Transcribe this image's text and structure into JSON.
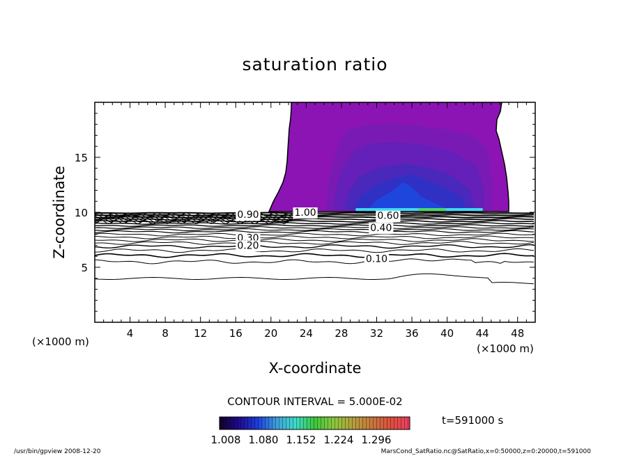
{
  "chart_data": {
    "type": "contour",
    "title": "saturation ratio",
    "xlabel": "X-coordinate",
    "ylabel": "Z-coordinate",
    "x_unit_left": "(×1000 m)",
    "x_unit_right": "(×1000 m)",
    "xlim": [
      0,
      50
    ],
    "ylim": [
      0,
      20
    ],
    "x_ticks": [
      4,
      8,
      12,
      16,
      20,
      24,
      28,
      32,
      36,
      40,
      44,
      48
    ],
    "y_ticks": [
      5,
      10,
      15
    ],
    "contour_interval": "CONTOUR INTERVAL = 5.000E-02",
    "contour_labels": [
      {
        "text": "1.00",
        "x": 23.9,
        "z": 10.0
      },
      {
        "text": "0.90",
        "x": 17.4,
        "z": 9.8
      },
      {
        "text": "0.60",
        "x": 33.3,
        "z": 9.7
      },
      {
        "text": "0.40",
        "x": 32.5,
        "z": 8.6
      },
      {
        "text": "0.30",
        "x": 17.4,
        "z": 7.7
      },
      {
        "text": "0.20",
        "x": 17.4,
        "z": 7.0
      },
      {
        "text": "0.10",
        "x": 32.0,
        "z": 5.8
      }
    ],
    "colorbar": {
      "tick_labels": [
        "1.008",
        "1.080",
        "1.152",
        "1.224",
        "1.296"
      ],
      "min": 1.008,
      "max": 1.296,
      "colors": [
        "#140028",
        "#1e0a8c",
        "#1e3cdc",
        "#3ca0dc",
        "#3cdcc8",
        "#3cc83c",
        "#8cc83c",
        "#b4a03c",
        "#c8783c",
        "#dc503c",
        "#f03c64"
      ]
    },
    "fill_colors": {
      "background": "#8c14b4",
      "level1": "#7a1ab4",
      "level2": "#6420b8",
      "level3": "#4a28bc",
      "level4": "#3030c4",
      "core": "#1e46dc",
      "cyan": "#3cdcf0",
      "green": "#46dc64"
    }
  },
  "time_label": "t=591000 s",
  "footer_left": "/usr/bin/gpview   2008-12-20",
  "footer_right": "MarsCond_SatRatio.nc@SatRatio,x=0:50000,z=0:20000,t=591000"
}
